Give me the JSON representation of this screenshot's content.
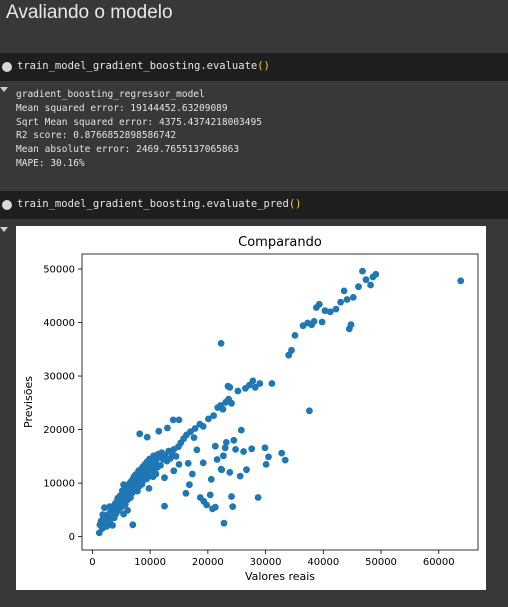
{
  "section": {
    "heading": "Avaliando o modelo"
  },
  "cell1": {
    "code_prefix": "train_model_gradient_boosting.evaluate",
    "code_parens": "()",
    "output_lines": [
      "gradient_boosting_regressor_model",
      "Mean squared error: 19144452.63209089",
      "Sqrt Mean squared error: 4375.4374218003495",
      "R2 score: 0.8766852898586742",
      "Mean absolute error: 2469.7655137065863",
      "MAPE: 30.16%"
    ]
  },
  "cell2": {
    "code_prefix": "train_model_gradient_boosting.evaluate_pred",
    "code_parens": "()"
  },
  "icons": {
    "run": "run-icon",
    "collapse": "collapse-output-icon"
  },
  "chart_data": {
    "type": "scatter",
    "title": "Comparando",
    "xlabel": "Valores reais",
    "ylabel": "Previsões",
    "xlim": [
      -1800,
      66800
    ],
    "ylim": [
      -2500,
      52800
    ],
    "xticks": [
      0,
      10000,
      20000,
      30000,
      40000,
      50000,
      60000
    ],
    "yticks": [
      0,
      10000,
      20000,
      30000,
      40000,
      50000
    ],
    "xtick_labels": [
      "0",
      "10000",
      "20000",
      "30000",
      "40000",
      "50000",
      "60000"
    ],
    "ytick_labels": [
      "0",
      "10000",
      "20000",
      "30000",
      "40000",
      "50000"
    ],
    "grid": false,
    "color": "#1f77b4",
    "points": [
      [
        1200,
        700
      ],
      [
        1300,
        2200
      ],
      [
        1500,
        2900
      ],
      [
        1700,
        1500
      ],
      [
        1800,
        3200
      ],
      [
        2000,
        2500
      ],
      [
        2200,
        3800
      ],
      [
        2400,
        3000
      ],
      [
        2500,
        1900
      ],
      [
        2700,
        4100
      ],
      [
        2900,
        3600
      ],
      [
        3000,
        2800
      ],
      [
        3100,
        4600
      ],
      [
        3300,
        5200
      ],
      [
        3400,
        3900
      ],
      [
        3500,
        2100
      ],
      [
        3600,
        5600
      ],
      [
        3700,
        4400
      ],
      [
        3800,
        3500
      ],
      [
        3900,
        6100
      ],
      [
        4000,
        5000
      ],
      [
        4100,
        4300
      ],
      [
        4200,
        6500
      ],
      [
        4300,
        5400
      ],
      [
        4400,
        7200
      ],
      [
        4500,
        4900
      ],
      [
        4600,
        6800
      ],
      [
        4700,
        5800
      ],
      [
        4800,
        7600
      ],
      [
        4900,
        6300
      ],
      [
        5000,
        5500
      ],
      [
        5100,
        7900
      ],
      [
        5200,
        8600
      ],
      [
        5300,
        6700
      ],
      [
        5400,
        9700
      ],
      [
        5500,
        7400
      ],
      [
        5600,
        8100
      ],
      [
        5700,
        6000
      ],
      [
        5800,
        9000
      ],
      [
        5900,
        7700
      ],
      [
        6000,
        8400
      ],
      [
        6100,
        6900
      ],
      [
        6200,
        9300
      ],
      [
        6300,
        8000
      ],
      [
        6400,
        9900
      ],
      [
        6500,
        8700
      ],
      [
        6600,
        7300
      ],
      [
        6700,
        10300
      ],
      [
        6800,
        9500
      ],
      [
        6900,
        8200
      ],
      [
        7000,
        10700
      ],
      [
        7100,
        9100
      ],
      [
        7200,
        11200
      ],
      [
        7300,
        8900
      ],
      [
        7400,
        10000
      ],
      [
        7500,
        11600
      ],
      [
        7600,
        9600
      ],
      [
        7700,
        10500
      ],
      [
        7800,
        8500
      ],
      [
        7900,
        11000
      ],
      [
        8000,
        12300
      ],
      [
        8100,
        9400
      ],
      [
        8200,
        10900
      ],
      [
        8300,
        11900
      ],
      [
        8400,
        10200
      ],
      [
        8500,
        12700
      ],
      [
        8600,
        9800
      ],
      [
        8700,
        11400
      ],
      [
        8800,
        13100
      ],
      [
        8900,
        10600
      ],
      [
        9000,
        12000
      ],
      [
        9100,
        13500
      ],
      [
        9200,
        11700
      ],
      [
        9300,
        12500
      ],
      [
        9400,
        10800
      ],
      [
        9500,
        14000
      ],
      [
        9600,
        12200
      ],
      [
        9700,
        13200
      ],
      [
        9800,
        11300
      ],
      [
        9900,
        14500
      ],
      [
        10000,
        12800
      ],
      [
        10200,
        13800
      ],
      [
        10400,
        12400
      ],
      [
        10600,
        15100
      ],
      [
        10800,
        13600
      ],
      [
        11000,
        14200
      ],
      [
        11200,
        12900
      ],
      [
        11400,
        15400
      ],
      [
        11600,
        14800
      ],
      [
        11800,
        13300
      ],
      [
        12000,
        15700
      ],
      [
        12300,
        14400
      ],
      [
        12600,
        15200
      ],
      [
        12900,
        14100
      ],
      [
        13200,
        16000
      ],
      [
        13500,
        14600
      ],
      [
        13800,
        15500
      ],
      [
        14100,
        16300
      ],
      [
        14500,
        15000
      ],
      [
        14900,
        16800
      ],
      [
        15300,
        17500
      ],
      [
        15800,
        18300
      ],
      [
        16300,
        19000
      ],
      [
        17000,
        19600
      ],
      [
        17800,
        20200
      ],
      [
        18600,
        21000
      ],
      [
        19200,
        20600
      ],
      [
        20100,
        22000
      ],
      [
        21000,
        22600
      ],
      [
        21700,
        24100
      ],
      [
        22200,
        24500
      ],
      [
        22600,
        23800
      ],
      [
        23100,
        25100
      ],
      [
        23600,
        25700
      ],
      [
        24100,
        24900
      ],
      [
        8200,
        19200
      ],
      [
        9500,
        18600
      ],
      [
        11500,
        19700
      ],
      [
        13000,
        20300
      ],
      [
        15000,
        21800
      ],
      [
        22300,
        36100
      ],
      [
        23500,
        28100
      ],
      [
        25200,
        27200
      ],
      [
        26500,
        27700
      ],
      [
        27200,
        28300
      ],
      [
        27800,
        29100
      ],
      [
        28200,
        27900
      ],
      [
        29000,
        28600
      ],
      [
        34000,
        33900
      ],
      [
        34500,
        34800
      ],
      [
        35100,
        37600
      ],
      [
        36500,
        39400
      ],
      [
        37300,
        39900
      ],
      [
        38000,
        39600
      ],
      [
        38400,
        40200
      ],
      [
        38800,
        42800
      ],
      [
        39300,
        43400
      ],
      [
        39800,
        40100
      ],
      [
        40300,
        42200
      ],
      [
        41200,
        42000
      ],
      [
        42200,
        42500
      ],
      [
        43000,
        43800
      ],
      [
        43600,
        45900
      ],
      [
        44100,
        44300
      ],
      [
        44500,
        38800
      ],
      [
        44800,
        39600
      ],
      [
        45200,
        44700
      ],
      [
        46100,
        46700
      ],
      [
        46800,
        49600
      ],
      [
        47400,
        48000
      ],
      [
        48200,
        47000
      ],
      [
        48600,
        48500
      ],
      [
        49100,
        49000
      ],
      [
        63800,
        47800
      ],
      [
        37600,
        23500
      ],
      [
        31100,
        28600
      ],
      [
        30100,
        13500
      ],
      [
        32800,
        15600
      ],
      [
        33400,
        14300
      ],
      [
        26700,
        12500
      ],
      [
        25600,
        11300
      ],
      [
        22300,
        12600
      ],
      [
        24100,
        7500
      ],
      [
        28700,
        7300
      ],
      [
        20800,
        5200
      ],
      [
        19800,
        5900
      ],
      [
        18700,
        7300
      ],
      [
        19300,
        6600
      ],
      [
        20400,
        7800
      ],
      [
        22800,
        2500
      ],
      [
        22400,
        12500
      ],
      [
        23800,
        12000
      ],
      [
        23200,
        17600
      ],
      [
        24800,
        16300
      ],
      [
        26200,
        15900
      ],
      [
        27600,
        16400
      ],
      [
        23000,
        16600
      ],
      [
        19200,
        13800
      ],
      [
        21600,
        14400
      ],
      [
        16200,
        8100
      ],
      [
        12500,
        5700
      ],
      [
        7000,
        2200
      ],
      [
        5400,
        4200
      ],
      [
        16800,
        9700
      ],
      [
        20600,
        10700
      ],
      [
        29900,
        16600
      ],
      [
        24500,
        18000
      ],
      [
        25800,
        19900
      ],
      [
        21300,
        16900
      ],
      [
        22700,
        15100
      ],
      [
        17300,
        11700
      ],
      [
        14000,
        21800
      ],
      [
        23800,
        27900
      ],
      [
        30500,
        14900
      ],
      [
        24300,
        5600
      ],
      [
        21300,
        5500
      ],
      [
        16600,
        13700
      ],
      [
        17600,
        18500
      ],
      [
        18100,
        16200
      ],
      [
        10500,
        11200
      ],
      [
        11000,
        11700
      ],
      [
        12500,
        11000
      ],
      [
        15000,
        13500
      ],
      [
        14100,
        12300
      ],
      [
        8500,
        10100
      ],
      [
        9800,
        9000
      ],
      [
        3000,
        5600
      ],
      [
        2300,
        1900
      ],
      [
        6100,
        4900
      ],
      [
        2100,
        5400
      ],
      [
        1800,
        4100
      ]
    ]
  }
}
